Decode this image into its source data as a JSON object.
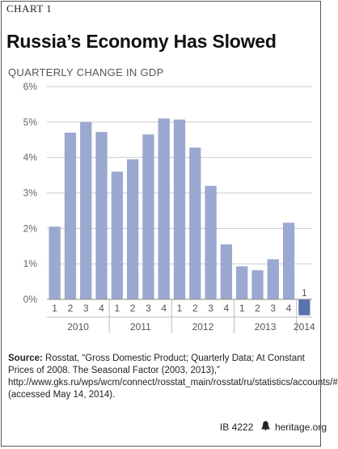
{
  "header": {
    "chart_label": "CHART 1",
    "title": "Russia’s Economy Has Slowed",
    "subtitle": "QUARTERLY CHANGE IN GDP"
  },
  "chart_data": {
    "type": "bar",
    "title": "Russia’s Economy Has Slowed",
    "subtitle": "QUARTERLY CHANGE IN GDP",
    "ylim": [
      0,
      6
    ],
    "yticks": [
      "0%",
      "1%",
      "2%",
      "3%",
      "4%",
      "5%",
      "6%"
    ],
    "grid": true,
    "bar_color": "#9ba8cf",
    "highlight_color": "#5a73ad",
    "categories": [
      "2010 Q1",
      "2010 Q2",
      "2010 Q3",
      "2010 Q4",
      "2011 Q1",
      "2011 Q2",
      "2011 Q3",
      "2011 Q4",
      "2012 Q1",
      "2012 Q2",
      "2012 Q3",
      "2012 Q4",
      "2013 Q1",
      "2013 Q2",
      "2013 Q3",
      "2013 Q4",
      "2014 Q1"
    ],
    "quarter_labels": [
      "1",
      "2",
      "3",
      "4",
      "1",
      "2",
      "3",
      "4",
      "1",
      "2",
      "3",
      "4",
      "1",
      "2",
      "3",
      "4",
      "1"
    ],
    "years": [
      "2010",
      "2011",
      "2012",
      "2013",
      "2014"
    ],
    "values": [
      2.05,
      4.7,
      5.0,
      4.72,
      3.6,
      3.95,
      4.65,
      5.1,
      5.07,
      4.28,
      3.2,
      1.55,
      0.93,
      0.82,
      1.13,
      2.16,
      -0.45
    ]
  },
  "source": {
    "label": "Source:",
    "text": "Rosstat, “Gross Domestic Product; Quarterly Data; At Constant Prices of 2008. The Seasonal Factor (2003, 2013),” http://www.gks.ru/wps/wcm/connect/rosstat_main/rosstat/ru/statistics/accounts/# (accessed May 14, 2014)."
  },
  "footer": {
    "code": "IB 4222",
    "bell_icon": "liberty-bell-icon",
    "site": "heritage.org"
  }
}
